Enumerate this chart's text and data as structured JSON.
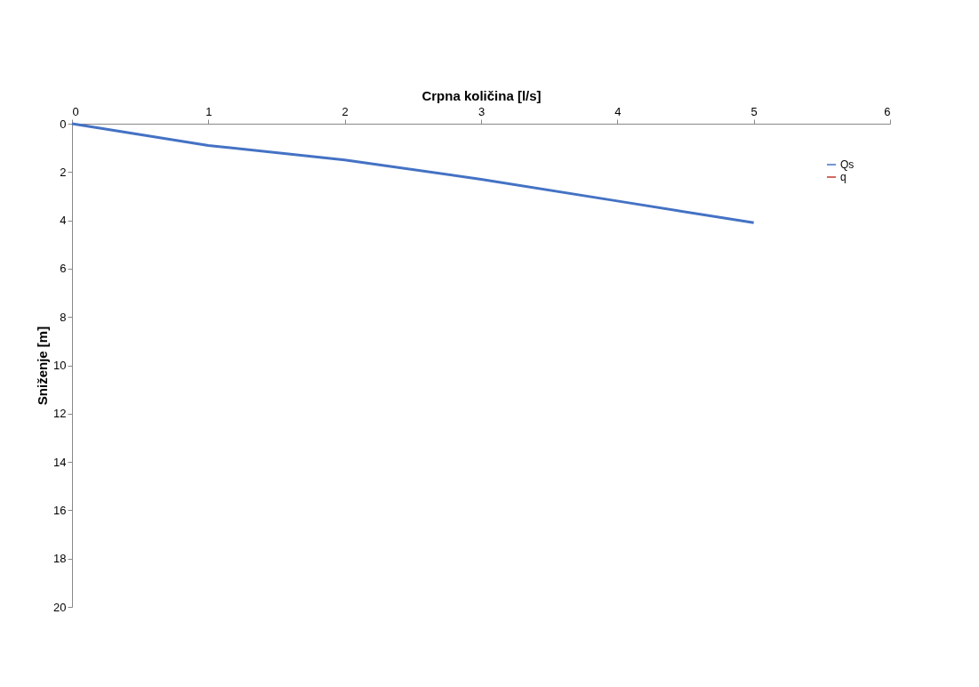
{
  "chart_data": {
    "type": "line",
    "xlabel": "Crpna količina [l/s]",
    "ylabel": "Sniženje [m]",
    "x": [
      0,
      1,
      2,
      3,
      4,
      5
    ],
    "series": [
      {
        "name": "Qs",
        "color": "#4472c4",
        "values": [
          0,
          0.9,
          1.5,
          2.3,
          3.2,
          4.1
        ]
      },
      {
        "name": "q",
        "color": "#c0392b",
        "values": [
          null,
          null,
          null,
          null,
          null,
          null
        ]
      }
    ],
    "xlim": [
      0,
      6
    ],
    "xticks": [
      0,
      1,
      2,
      3,
      4,
      5,
      6
    ],
    "ylim": [
      20,
      0
    ],
    "yticks": [
      0,
      2,
      4,
      6,
      8,
      10,
      12,
      14,
      16,
      18,
      20
    ],
    "grid": false,
    "legend": "top right",
    "marker": "none",
    "line_style": "solid"
  }
}
